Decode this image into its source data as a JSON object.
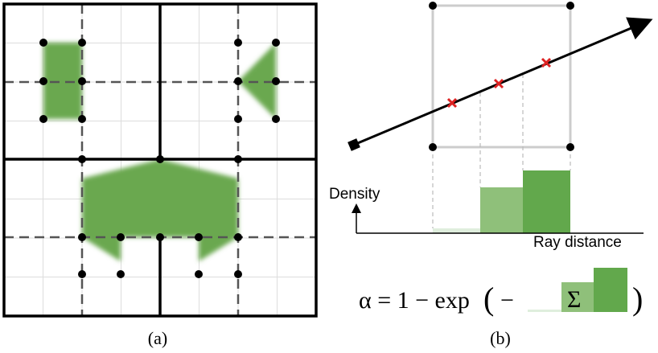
{
  "panel_a": {
    "caption": "(a)"
  },
  "panel_b": {
    "caption": "(b)",
    "y_axis_label": "Density",
    "x_axis_label": "Ray distance",
    "formula": {
      "lhs": "α = 1 − exp",
      "open": "(",
      "minus": "−",
      "sum": "Σ",
      "close": ")"
    }
  }
}
